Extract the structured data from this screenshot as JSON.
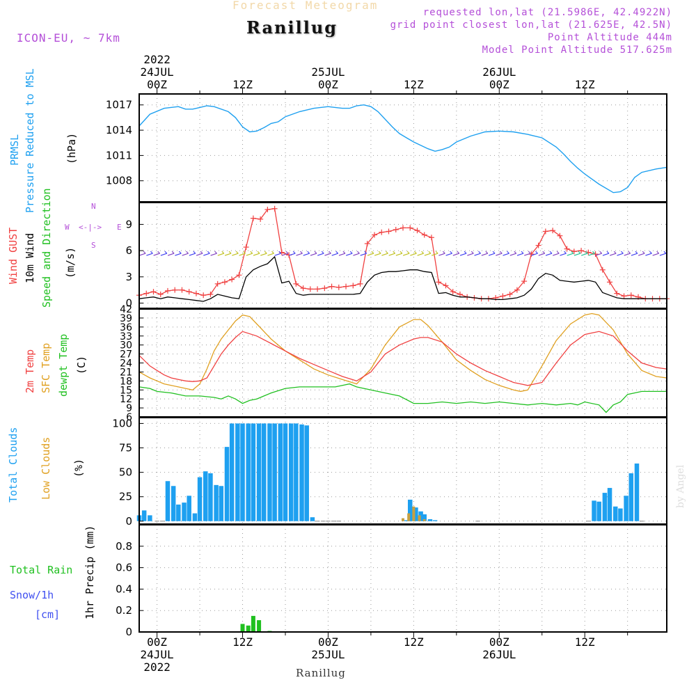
{
  "header": {
    "faint_title": "Forecast Meteogram",
    "title": "Ranillug",
    "model": "ICON-EU, ~ 7km",
    "requested": "requested lon,lat (21.5986E, 42.4922N)",
    "grid": "grid point closest lon,lat (21.625E, 42.5N)",
    "alt": "Point Altitude 444m",
    "model_alt": "Model Point Altitude 517.625m"
  },
  "time_axis": {
    "top_labels": [
      {
        "line1": "2022",
        "line2": "24JUL",
        "line3": "00Z"
      },
      {
        "line1": "",
        "line2": "",
        "line3": "12Z"
      },
      {
        "line1": "",
        "line2": "25JUL",
        "line3": "00Z"
      },
      {
        "line1": "",
        "line2": "",
        "line3": "12Z"
      },
      {
        "line1": "",
        "line2": "26JUL",
        "line3": "00Z"
      },
      {
        "line1": "",
        "line2": "",
        "line3": "12Z"
      }
    ],
    "bottom_labels": [
      {
        "line1": "00Z",
        "line2": "24JUL",
        "line3": "2022"
      },
      {
        "line1": "12Z",
        "line2": "",
        "line3": ""
      },
      {
        "line1": "00Z",
        "line2": "25JUL",
        "line3": ""
      },
      {
        "line1": "12Z",
        "line2": "",
        "line3": ""
      },
      {
        "line1": "00Z",
        "line2": "26JUL",
        "line3": ""
      },
      {
        "line1": "12Z",
        "line2": "",
        "line3": ""
      }
    ],
    "hours": [
      0,
      12,
      24,
      36,
      48,
      60
    ],
    "start_hour": -2.5,
    "end_hour": 71.5
  },
  "labels": {
    "prmsl1": "PRMSL",
    "prmsl2": "Pressure Reduced to MSL",
    "hpa": "(hPa)",
    "gust": "Wind GUST",
    "wind10": "10m Wind",
    "speeddir": "Speed and Direction",
    "ms": "(m/s)",
    "compass_n": "N",
    "compass_s": "S",
    "compass_w": "W",
    "compass_e": "E",
    "compass_mid": "<-|->",
    "temp2m": "2m Temp",
    "sfctemp": "SFC Temp",
    "dewpt": "dewpt Temp",
    "degc": "(C)",
    "totalclouds": "Total Clouds",
    "lowclouds": "Low Clouds",
    "pct": "(%)",
    "totalrain": "Total  Rain",
    "snow": "Snow/1h",
    "cm": "[cm]",
    "precip": "1hr Precip (mm)",
    "footer": "Ranillug",
    "byangel": "by Angel"
  },
  "colors": {
    "pressure": "#1ea0f0",
    "gust": "#f04040",
    "wind": "#000000",
    "temp": "#f04040",
    "sfc": "#e0a020",
    "dewpt": "#20c020",
    "cloud": "#1ea0f0",
    "lowcloud": "#c8a040",
    "rain": "#20c020"
  },
  "chart_data": [
    {
      "type": "line",
      "title": "PRMSL Pressure Reduced to MSL",
      "ylabel": "(hPa)",
      "ylim": [
        1005.5,
        1018.3
      ],
      "yticks": [
        1008,
        1011,
        1014,
        1017
      ],
      "series": [
        {
          "name": "PRMSL",
          "hours": [
            -2.5,
            -1,
            1,
            3,
            4,
            5,
            6,
            7,
            8,
            10,
            11,
            12,
            13,
            14,
            15,
            16,
            17,
            18,
            20,
            22,
            24,
            25,
            26,
            27,
            28,
            29,
            30,
            31,
            33,
            34,
            35,
            36,
            38,
            39,
            40,
            41,
            42,
            44,
            46,
            48,
            50,
            52,
            54,
            56,
            57,
            58,
            59,
            60,
            62,
            64,
            65,
            66,
            67,
            68,
            70,
            71.5
          ],
          "values": [
            1014.5,
            1015.9,
            1016.6,
            1016.8,
            1016.5,
            1016.5,
            1016.7,
            1016.9,
            1016.8,
            1016.2,
            1015.5,
            1014.4,
            1013.8,
            1013.9,
            1014.3,
            1014.8,
            1015.0,
            1015.6,
            1016.2,
            1016.6,
            1016.8,
            1016.7,
            1016.6,
            1016.6,
            1016.9,
            1017.0,
            1016.8,
            1016.2,
            1014.4,
            1013.6,
            1013.1,
            1012.6,
            1011.8,
            1011.5,
            1011.7,
            1012.0,
            1012.6,
            1013.3,
            1013.8,
            1013.9,
            1013.8,
            1013.5,
            1013.1,
            1012.0,
            1011.2,
            1010.3,
            1009.5,
            1008.8,
            1007.6,
            1006.6,
            1006.7,
            1007.2,
            1008.4,
            1009.0,
            1009.4,
            1009.6
          ]
        }
      ]
    },
    {
      "type": "line",
      "title": "Wind GUST / 10m Wind Speed and Direction",
      "ylabel": "(m/s)",
      "ylim": [
        -0.6,
        11.5
      ],
      "yticks": [
        0,
        3,
        6,
        9
      ],
      "series": [
        {
          "name": "Wind GUST",
          "hours": [
            -2.5,
            -1.5,
            -0.5,
            0.5,
            1.5,
            2.5,
            3.5,
            4.5,
            5.5,
            6.5,
            7.5,
            8.5,
            9.5,
            10.5,
            11.5,
            12.5,
            13.5,
            14.5,
            15.5,
            16.5,
            17.5,
            18.5,
            19.5,
            20.5,
            21.5,
            22.5,
            23.5,
            24.5,
            25.5,
            26.5,
            27.5,
            28.5,
            29.5,
            30.5,
            31.5,
            32.5,
            33.5,
            34.5,
            35.5,
            36.5,
            37.5,
            38.5,
            39.5,
            40.5,
            41.5,
            42.5,
            43.5,
            44.5,
            45.5,
            46.5,
            47.5,
            48.5,
            49.5,
            50.5,
            51.5,
            52.5,
            53.5,
            54.5,
            55.5,
            56.5,
            57.5,
            58.5,
            59.5,
            60.5,
            61.5,
            62.5,
            63.5,
            64.5,
            65.5,
            66.5,
            67.5,
            68.5,
            69.5,
            70.5,
            71.5
          ],
          "values": [
            0.9,
            1.1,
            1.3,
            1.0,
            1.4,
            1.5,
            1.5,
            1.3,
            1.1,
            0.9,
            1.0,
            2.2,
            2.4,
            2.7,
            3.2,
            6.4,
            9.7,
            9.6,
            10.7,
            10.8,
            5.8,
            5.5,
            2.2,
            1.7,
            1.6,
            1.6,
            1.7,
            1.9,
            1.8,
            1.9,
            2.0,
            2.2,
            6.8,
            7.8,
            8.1,
            8.2,
            8.4,
            8.6,
            8.6,
            8.3,
            7.8,
            7.5,
            2.4,
            2.0,
            1.3,
            1.0,
            0.7,
            0.6,
            0.5,
            0.5,
            0.6,
            0.8,
            1.0,
            1.5,
            2.5,
            5.6,
            6.6,
            8.2,
            8.3,
            7.7,
            6.2,
            5.9,
            6.0,
            5.8,
            5.6,
            3.8,
            2.4,
            1.1,
            0.8,
            0.9,
            0.7,
            0.5,
            0.5,
            0.5,
            0.5
          ]
        },
        {
          "name": "10m Wind",
          "hours": [
            -2.5,
            -1.5,
            -0.5,
            0.5,
            1.5,
            2.5,
            3.5,
            4.5,
            5.5,
            6.5,
            7.5,
            8.5,
            9.5,
            10.5,
            11.5,
            12.5,
            13.5,
            14.5,
            15.5,
            16.5,
            17.5,
            18.5,
            19.5,
            20.5,
            21.5,
            22.5,
            23.5,
            24.5,
            25.5,
            26.5,
            27.5,
            28.5,
            29.5,
            30.5,
            31.5,
            32.5,
            33.5,
            34.5,
            35.5,
            36.5,
            37.5,
            38.5,
            39.5,
            40.5,
            41.5,
            42.5,
            43.5,
            44.5,
            45.5,
            46.5,
            47.5,
            48.5,
            49.5,
            50.5,
            51.5,
            52.5,
            53.5,
            54.5,
            55.5,
            56.5,
            57.5,
            58.5,
            59.5,
            60.5,
            61.5,
            62.5,
            63.5,
            64.5,
            65.5,
            66.5,
            67.5,
            68.5,
            69.5,
            70.5,
            71.5
          ],
          "values": [
            0.5,
            0.6,
            0.7,
            0.5,
            0.7,
            0.6,
            0.5,
            0.4,
            0.3,
            0.2,
            0.5,
            1.0,
            0.8,
            0.6,
            0.5,
            3.0,
            3.8,
            4.2,
            4.5,
            5.3,
            2.3,
            2.5,
            1.1,
            0.9,
            1.0,
            1.0,
            1.0,
            1.0,
            1.0,
            1.0,
            1.0,
            1.1,
            2.4,
            3.2,
            3.5,
            3.6,
            3.6,
            3.7,
            3.8,
            3.8,
            3.6,
            3.5,
            1.1,
            1.2,
            0.9,
            0.7,
            0.7,
            0.6,
            0.5,
            0.5,
            0.4,
            0.4,
            0.5,
            0.6,
            0.9,
            1.6,
            2.8,
            3.4,
            3.2,
            2.6,
            2.5,
            2.4,
            2.5,
            2.6,
            2.4,
            1.2,
            0.9,
            0.6,
            0.5,
            0.5,
            0.5,
            0.5,
            0.5,
            0.5,
            0.5
          ]
        }
      ]
    },
    {
      "type": "line",
      "title": "2m Temp / SFC Temp / dewpt Temp",
      "ylabel": "(C)",
      "ylim": [
        6,
        42
      ],
      "yticks": [
        6,
        9,
        12,
        15,
        18,
        21,
        24,
        27,
        30,
        33,
        36,
        39,
        42
      ],
      "series": [
        {
          "name": "2m Temp",
          "hours": [
            -2.5,
            -1,
            0,
            1,
            2,
            3,
            4,
            5,
            6,
            7,
            8,
            9,
            10,
            11,
            12,
            14,
            16,
            18,
            20,
            22,
            24,
            26,
            28,
            30,
            32,
            34,
            36,
            37,
            38,
            40,
            42,
            44,
            46,
            48,
            49,
            50,
            51,
            52,
            54,
            56,
            58,
            60,
            61,
            62,
            64,
            66,
            68,
            70,
            71.5
          ],
          "values": [
            26.5,
            23,
            21.5,
            20,
            19,
            18.5,
            18,
            17.8,
            18,
            19,
            23,
            27,
            30,
            32.5,
            34.5,
            33,
            30.5,
            28,
            25.5,
            23.5,
            21.5,
            19.5,
            18,
            21,
            27,
            30,
            32,
            32.5,
            32.5,
            31,
            27,
            24,
            21.5,
            19.5,
            18.5,
            17.5,
            17,
            16.5,
            17.5,
            24,
            30,
            33.5,
            34,
            34.5,
            33,
            28,
            24,
            22.5,
            22
          ]
        },
        {
          "name": "SFC Temp",
          "hours": [
            -2.5,
            -1,
            0,
            1,
            2,
            3,
            4,
            5,
            6,
            7,
            8,
            9,
            10,
            11,
            12,
            13,
            14,
            16,
            18,
            20,
            22,
            24,
            26,
            28,
            30,
            32,
            34,
            36,
            37,
            38,
            40,
            42,
            44,
            46,
            48,
            50,
            51,
            52,
            54,
            56,
            58,
            60,
            61,
            62,
            64,
            66,
            68,
            70,
            71.5
          ],
          "values": [
            21,
            19,
            18,
            17,
            16.5,
            16,
            15.5,
            15,
            17,
            22,
            28,
            32,
            35,
            38,
            40,
            39.5,
            37,
            32,
            28,
            25,
            22,
            20,
            18.5,
            17,
            22,
            30,
            36,
            38.5,
            38.5,
            36.5,
            31,
            25,
            21.5,
            18.5,
            16.5,
            15,
            14.5,
            15,
            23,
            31.5,
            37,
            40,
            40.5,
            40,
            35,
            27,
            21.5,
            19.5,
            19
          ]
        },
        {
          "name": "dewpt Temp",
          "hours": [
            -2.5,
            -1,
            0,
            2,
            4,
            6,
            8,
            9,
            10,
            11,
            12,
            13,
            14,
            16,
            18,
            20,
            22,
            24,
            25,
            26,
            27,
            28,
            30,
            32,
            34,
            36,
            38,
            40,
            42,
            44,
            46,
            48,
            50,
            52,
            54,
            56,
            58,
            59,
            60,
            62,
            63,
            64,
            65,
            66,
            68,
            70,
            71.5
          ],
          "values": [
            16,
            15.5,
            14.5,
            14,
            13,
            13,
            12.5,
            12,
            13,
            12,
            10.5,
            11.5,
            12,
            14,
            15.5,
            16,
            16,
            16,
            16,
            16.5,
            17,
            16,
            15,
            14,
            13,
            10.5,
            10.5,
            11,
            10.5,
            11,
            10.5,
            11,
            10.5,
            10,
            10.5,
            10,
            10.5,
            10,
            11,
            10,
            7.5,
            10,
            11,
            13.5,
            14.5,
            14.5,
            14.5
          ]
        }
      ]
    },
    {
      "type": "bar",
      "title": "Total Clouds / Low Clouds",
      "ylabel": "(%)",
      "ylim": [
        -3,
        106
      ],
      "yticks": [
        0,
        25,
        50,
        75,
        100
      ],
      "series": [
        {
          "name": "Total Clouds",
          "hours": [
            -2.5,
            -1.8,
            -1,
            0,
            0.8,
            1.5,
            2.3,
            3,
            3.8,
            4.5,
            5.3,
            6,
            6.8,
            7.5,
            8.3,
            9,
            9.8,
            10.5,
            11.3,
            12,
            12.8,
            13.5,
            14.3,
            15,
            15.8,
            16.5,
            17.3,
            18,
            18.8,
            19.5,
            20.3,
            21,
            21.8,
            22.5,
            23.3,
            24,
            24.8,
            25.5,
            35,
            35.5,
            36.3,
            37,
            37.5,
            38.3,
            39,
            45,
            60.5,
            61.3,
            62,
            62.8,
            63.5,
            64.3,
            65,
            65.8,
            66.5,
            67.3,
            68
          ],
          "values": [
            6,
            11,
            6,
            0,
            0,
            41,
            36,
            17,
            19,
            26,
            8,
            45,
            51,
            49,
            37,
            36,
            76,
            100,
            100,
            100,
            100,
            100,
            100,
            100,
            100,
            100,
            100,
            100,
            100,
            100,
            99,
            98,
            4,
            0,
            0,
            0,
            0,
            0,
            1,
            22,
            14,
            10,
            7,
            2,
            1,
            0,
            0,
            21,
            20,
            29,
            34,
            15,
            13,
            26,
            49,
            59,
            0
          ]
        },
        {
          "name": "Low Clouds",
          "hours": [
            34.5,
            35.3,
            36,
            36.8,
            37.5
          ],
          "values": [
            3,
            8,
            15,
            6,
            2
          ]
        }
      ]
    },
    {
      "type": "bar",
      "title": "1hr Precip (mm)",
      "ylabel": "1hr Precip (mm)",
      "ylim": [
        0,
        1.0
      ],
      "yticks": [
        0,
        0.2,
        0.4,
        0.6,
        0.8
      ],
      "series": [
        {
          "name": "Total Rain",
          "hours": [
            12,
            12.8,
            13.5,
            14.3,
            15.8
          ],
          "values": [
            0.075,
            0.06,
            0.15,
            0.11,
            0.01
          ]
        }
      ]
    }
  ]
}
